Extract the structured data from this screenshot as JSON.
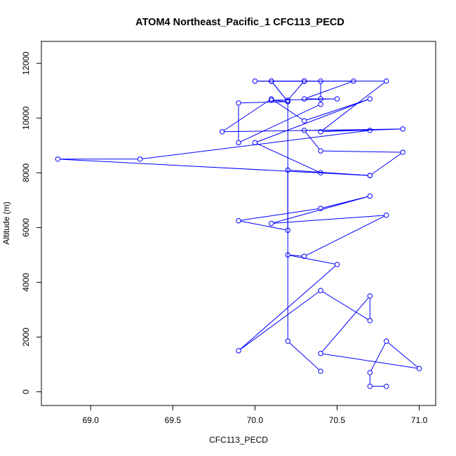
{
  "chart_data": {
    "type": "line",
    "title": "ATOM4 Northeast_Pacific_1 CFC113_PECD",
    "xlabel": "CFC113_PECD",
    "ylabel": "Altitude (m)",
    "xlim": [
      68.7,
      71.1
    ],
    "ylim": [
      -500,
      12800
    ],
    "x_ticks": [
      69.0,
      69.5,
      70.0,
      70.5,
      71.0
    ],
    "x_tick_labels": [
      "69.0",
      "69.5",
      "70.0",
      "70.5",
      "71.0"
    ],
    "y_ticks": [
      0,
      2000,
      4000,
      6000,
      8000,
      10000,
      12000
    ],
    "y_tick_labels": [
      "0",
      "2000",
      "4000",
      "6000",
      "8000",
      "10000",
      "12000"
    ],
    "series_color": "#0000ff",
    "marker": "open-circle",
    "series": [
      {
        "x": [
          70.8,
          70.7,
          70.7,
          70.8,
          71.0,
          70.4,
          70.7,
          70.7,
          70.4,
          69.9,
          70.5,
          70.2,
          70.3,
          70.8,
          70.1,
          70.7,
          70.4,
          69.9,
          70.2,
          70.2,
          70.7,
          70.9,
          70.4,
          70.3,
          70.7,
          69.3,
          68.8,
          70.7,
          70.4,
          70.0,
          70.7,
          70.3,
          70.1,
          69.8,
          70.9,
          70.4,
          70.8,
          70.3,
          70.2,
          70.2,
          70.1,
          70.5,
          70.3,
          70.6,
          70.0,
          70.3,
          70.1,
          70.2,
          69.9,
          69.9,
          70.4,
          70.4,
          70.4,
          70.3,
          70.3,
          70.1,
          70.1,
          70.2,
          70.2,
          70.2,
          70.4
        ],
        "y": [
          200,
          200,
          700,
          1850,
          850,
          1400,
          3500,
          2600,
          3700,
          1500,
          4650,
          5000,
          4950,
          6450,
          6150,
          7150,
          6700,
          6250,
          5900,
          8100,
          7900,
          8750,
          8800,
          9550,
          9550,
          8500,
          8500,
          7900,
          8000,
          9100,
          10700,
          9900,
          10700,
          9500,
          9600,
          9500,
          11350,
          11350,
          10650,
          10600,
          10650,
          10700,
          10700,
          11350,
          11350,
          11350,
          11350,
          10600,
          10550,
          9100,
          10500,
          10700,
          11350,
          11350,
          11350,
          11350,
          11350,
          10600,
          10650,
          1850,
          750
        ]
      }
    ]
  }
}
